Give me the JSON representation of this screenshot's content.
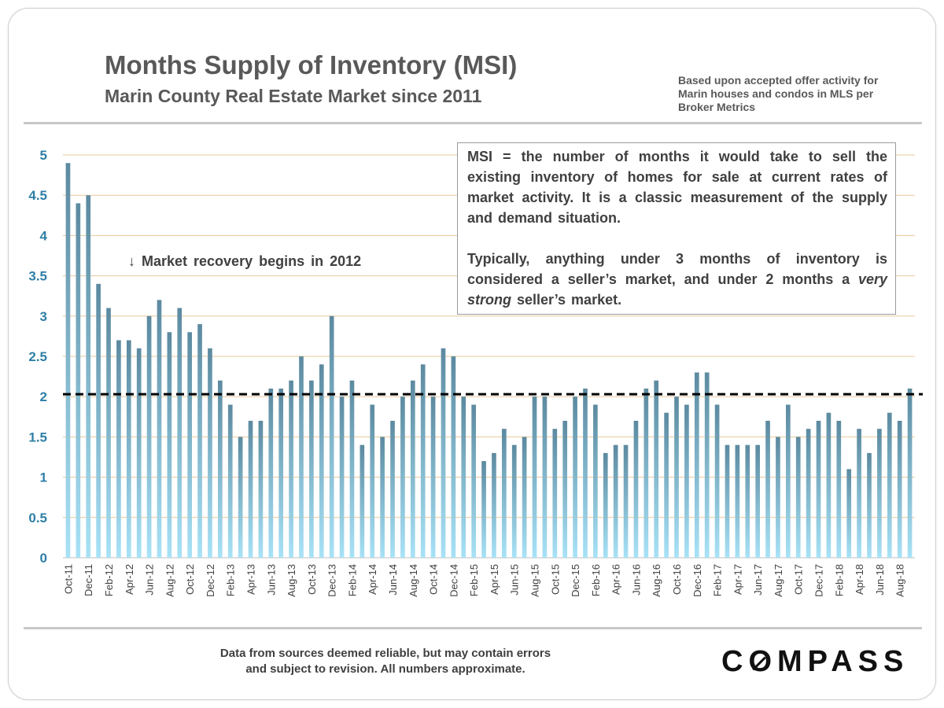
{
  "header": {
    "title": "Months Supply of Inventory (MSI)",
    "subtitle": "Marin County Real Estate Market since 2011",
    "source_note": "Based upon accepted offer activity for Marin houses and condos in MLS per Broker Metrics"
  },
  "definition_box": {
    "para1": "MSI = the number of months it would take to sell the existing inventory of homes for sale at current rates of market activity.  It is a classic measurement of the supply and demand situation.",
    "para2_before": "Typically, anything under 3 months of inventory is considered a seller’s market, and under 2 months a ",
    "para2_emphasis": "very strong",
    "para2_after": " seller’s market."
  },
  "annotation": {
    "recovery": "↓ Market recovery begins in 2012"
  },
  "footer": {
    "disclaimer_line1": "Data from sources deemed reliable, but may contain errors",
    "disclaimer_line2": "and subject to revision. All numbers approximate.",
    "logo": "COMPASS"
  },
  "colors": {
    "bar_top": "#5c8aa0",
    "bar_bottom": "#a8e2f6",
    "axis_text": "#2f7fa6",
    "grid": "#e8c89a",
    "reference_line": "#000000"
  },
  "chart_data": {
    "type": "bar",
    "categories": [
      "Oct-11",
      "Nov-11",
      "Dec-11",
      "Jan-12",
      "Feb-12",
      "Mar-12",
      "Apr-12",
      "May-12",
      "Jun-12",
      "Jul-12",
      "Aug-12",
      "Sep-12",
      "Oct-12",
      "Nov-12",
      "Dec-12",
      "Jan-13",
      "Feb-13",
      "Mar-13",
      "Apr-13",
      "May-13",
      "Jun-13",
      "Jul-13",
      "Aug-13",
      "Sep-13",
      "Oct-13",
      "Nov-13",
      "Dec-13",
      "Jan-14",
      "Feb-14",
      "Mar-14",
      "Apr-14",
      "May-14",
      "Jun-14",
      "Jul-14",
      "Aug-14",
      "Sep-14",
      "Oct-14",
      "Nov-14",
      "Dec-14",
      "Jan-15",
      "Feb-15",
      "Mar-15",
      "Apr-15",
      "May-15",
      "Jun-15",
      "Jul-15",
      "Aug-15",
      "Sep-15",
      "Oct-15",
      "Nov-15",
      "Dec-15",
      "Jan-16",
      "Feb-16",
      "Mar-16",
      "Apr-16",
      "May-16",
      "Jun-16",
      "Jul-16",
      "Aug-16",
      "Sep-16",
      "Oct-16",
      "Nov-16",
      "Dec-16",
      "Jan-17",
      "Feb-17",
      "Mar-17",
      "Apr-17",
      "May-17",
      "Jun-17",
      "Jul-17",
      "Aug-17",
      "Sep-17",
      "Oct-17",
      "Nov-17",
      "Dec-17",
      "Jan-18",
      "Feb-18",
      "Mar-18",
      "Apr-18",
      "May-18",
      "Jun-18",
      "Jul-18",
      "Aug-18",
      "Sep-18"
    ],
    "values": [
      4.9,
      4.4,
      4.5,
      3.4,
      3.1,
      2.7,
      2.7,
      2.6,
      3.0,
      3.2,
      2.8,
      3.1,
      2.8,
      2.9,
      2.6,
      2.2,
      1.9,
      1.5,
      1.7,
      1.7,
      2.1,
      2.1,
      2.2,
      2.5,
      2.2,
      2.4,
      3.0,
      2.0,
      2.2,
      1.4,
      1.9,
      1.5,
      1.7,
      2.0,
      2.2,
      2.4,
      2.0,
      2.6,
      2.5,
      2.0,
      1.9,
      1.2,
      1.3,
      1.6,
      1.4,
      1.5,
      2.0,
      2.0,
      1.6,
      1.7,
      2.0,
      2.1,
      1.9,
      1.3,
      1.4,
      1.4,
      1.7,
      2.1,
      2.2,
      1.8,
      2.0,
      1.9,
      2.3,
      2.3,
      1.9,
      1.4,
      1.4,
      1.4,
      1.4,
      1.7,
      1.5,
      1.9,
      1.5,
      1.6,
      1.7,
      1.8,
      1.7,
      1.1,
      1.6,
      1.3,
      1.6,
      1.8,
      1.7,
      2.1
    ],
    "tick_labels": [
      "Oct-11",
      "Dec-11",
      "Feb-12",
      "Apr-12",
      "Jun-12",
      "Aug-12",
      "Oct-12",
      "Dec-12",
      "Feb-13",
      "Apr-13",
      "Jun-13",
      "Aug-13",
      "Oct-13",
      "Dec-13",
      "Feb-14",
      "Apr-14",
      "Jun-14",
      "Aug-14",
      "Oct-14",
      "Dec-14",
      "Feb-15",
      "Apr-15",
      "Jun-15",
      "Aug-15",
      "Oct-15",
      "Dec-15",
      "Feb-16",
      "Apr-16",
      "Jun-16",
      "Aug-16",
      "Oct-16",
      "Dec-16",
      "Feb-17",
      "Apr-17",
      "Jun-17",
      "Aug-17",
      "Oct-17",
      "Dec-17",
      "Feb-18",
      "Apr-18",
      "Jun-18",
      "Aug-18"
    ],
    "y_ticks": [
      "0",
      "0.5",
      "1",
      "1.5",
      "2",
      "2.5",
      "3",
      "3.5",
      "4",
      "4.5",
      "5"
    ],
    "ylim": [
      0,
      5
    ],
    "reference_line": 2.03,
    "grid": true
  }
}
